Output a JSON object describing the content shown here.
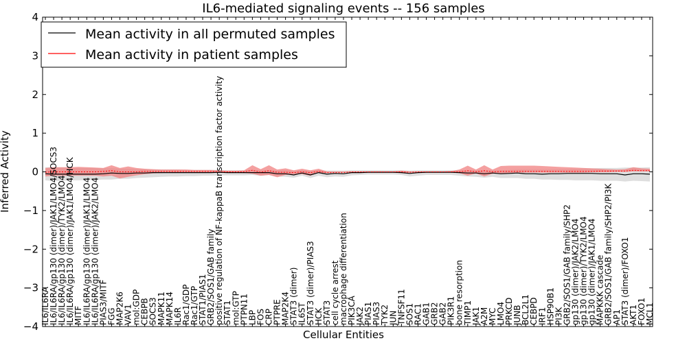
{
  "chart_data": {
    "type": "line",
    "title": "IL6-mediated signaling events -- 156 samples",
    "xlabel": "Cellular Entities",
    "ylabel": "Inferred Activity",
    "ylim": [
      -4,
      4
    ],
    "yticks": [
      {
        "value": 4,
        "label": "4"
      },
      {
        "value": 3,
        "label": "3"
      },
      {
        "value": 2,
        "label": "2"
      },
      {
        "value": 1,
        "label": "1"
      },
      {
        "value": 0,
        "label": "0"
      },
      {
        "value": -1,
        "label": "−1"
      },
      {
        "value": -2,
        "label": "−2"
      },
      {
        "value": -3,
        "label": "−3"
      },
      {
        "value": -4,
        "label": "−4"
      }
    ],
    "legend_position": "top-left",
    "categories": [
      "IL6/IL6RA",
      "IL6/IL6RA/gp130 (dimer)/JAK1/LMO4/SOCS3",
      "IL6/IL6RA/gp130 (dimer)/TYK2/LMO4",
      "IL6/IL6RA/gp130 (dimer)/JAK1/LMO4/HCK",
      "MITF",
      "IL6/IL6RA/gp130 (dimer)/JAK1/LMO4",
      "IL6/IL6RA/gp130 (dimer)/JAK2/LMO4",
      "PIAS3/MITF",
      "FGG",
      "MAP2K6",
      "VAV1",
      "mol:GDP",
      "CEBPB",
      "SOCS3",
      "MAPK11",
      "MAPK14",
      "IL6R",
      "Rac1/GDP",
      "Rac1/GTP",
      "STAT1/PIAS1",
      "GRB2/SOS1/GAB family",
      "positive regulation of NF-kappaB transcription factor activity",
      "STAT1",
      "mol:GTP",
      "PTPN11",
      "LBP",
      "FOS",
      "CRP",
      "PTPRE",
      "MAP2K4",
      "STAT3 (dimer)",
      "IL6ST",
      "STAT3 (dimer)/PIAS3",
      "HCK",
      "STAT3",
      "cell cycle arrest",
      "macrophage differentiation",
      "PIK3CA",
      "JAK2",
      "PIAS1",
      "PIAS3",
      "TYK2",
      "JUN",
      "TNFSF11",
      "SOS1",
      "RAC1",
      "GAB1",
      "GRB2",
      "GAB2",
      "PIK3R1",
      "bone resorption",
      "TIMP1",
      "JAK1",
      "A2M",
      "MYC",
      "LMO4",
      "PRKCD",
      "JUNB",
      "BCL2L1",
      "CEBPD",
      "IRF1",
      "HSP90B1",
      "PI3K",
      "GRB2/SOS1/GAB family/SHP2",
      "gp130 (dimer)/JAK2/LMO4",
      "gp130 (dimer)/TYK2/LMO4",
      "gp130 (dimer)/JAK1/LMO4",
      "MAPKKK cascade",
      "GRB2/SOS1/GAB family/SHP2/PI3K",
      "AP1",
      "STAT3 (dimer)/FOXO1",
      "AKT1",
      "FOXO1",
      "MCL1"
    ],
    "series": [
      {
        "name": "Mean activity in all permuted samples",
        "color": "#000000",
        "mean": [
          -0.05,
          -0.06,
          -0.06,
          -0.06,
          -0.06,
          -0.06,
          -0.06,
          -0.05,
          -0.03,
          -0.04,
          -0.04,
          -0.03,
          -0.03,
          -0.02,
          -0.02,
          -0.02,
          -0.02,
          -0.02,
          -0.02,
          -0.02,
          -0.02,
          -0.01,
          -0.02,
          -0.02,
          -0.02,
          -0.02,
          -0.02,
          -0.02,
          -0.05,
          -0.05,
          -0.08,
          -0.03,
          -0.08,
          -0.02,
          -0.06,
          -0.04,
          -0.05,
          -0.02,
          -0.02,
          -0.01,
          -0.01,
          -0.01,
          -0.01,
          -0.02,
          -0.04,
          -0.02,
          -0.01,
          -0.01,
          -0.01,
          -0.01,
          -0.02,
          -0.03,
          -0.03,
          -0.05,
          -0.03,
          -0.05,
          -0.04,
          -0.03,
          -0.05,
          -0.05,
          -0.06,
          -0.05,
          -0.05,
          -0.04,
          -0.04,
          -0.04,
          -0.04,
          -0.05,
          -0.05,
          -0.05,
          -0.08,
          -0.05,
          -0.05,
          -0.06
        ],
        "band_low": [
          -0.22,
          -0.24,
          -0.23,
          -0.22,
          -0.22,
          -0.21,
          -0.21,
          -0.2,
          -0.2,
          -0.18,
          -0.18,
          -0.16,
          -0.15,
          -0.14,
          -0.13,
          -0.12,
          -0.12,
          -0.11,
          -0.11,
          -0.1,
          -0.1,
          -0.09,
          -0.09,
          -0.09,
          -0.09,
          -0.08,
          -0.1,
          -0.08,
          -0.12,
          -0.13,
          -0.15,
          -0.1,
          -0.16,
          -0.1,
          -0.14,
          -0.12,
          -0.13,
          -0.09,
          -0.08,
          -0.07,
          -0.07,
          -0.07,
          -0.07,
          -0.08,
          -0.12,
          -0.1,
          -0.08,
          -0.08,
          -0.08,
          -0.08,
          -0.1,
          -0.12,
          -0.13,
          -0.15,
          -0.13,
          -0.16,
          -0.16,
          -0.16,
          -0.18,
          -0.18,
          -0.2,
          -0.2,
          -0.21,
          -0.21,
          -0.22,
          -0.22,
          -0.22,
          -0.23,
          -0.23,
          -0.23,
          -0.25,
          -0.23,
          -0.24,
          -0.25
        ],
        "band_high": [
          0.12,
          0.12,
          0.11,
          0.1,
          0.1,
          0.1,
          0.1,
          0.09,
          0.1,
          0.08,
          0.08,
          0.07,
          0.07,
          0.06,
          0.06,
          0.06,
          0.06,
          0.05,
          0.05,
          0.05,
          0.05,
          0.05,
          0.04,
          0.04,
          0.04,
          0.04,
          0.05,
          0.04,
          0.04,
          0.04,
          0.03,
          0.04,
          0.02,
          0.05,
          0.03,
          0.03,
          0.03,
          0.04,
          0.04,
          0.04,
          0.04,
          0.04,
          0.04,
          0.04,
          0.03,
          0.04,
          0.04,
          0.04,
          0.04,
          0.04,
          0.04,
          0.03,
          0.04,
          0.03,
          0.04,
          0.04,
          0.05,
          0.06,
          0.06,
          0.06,
          0.06,
          0.06,
          0.07,
          0.07,
          0.08,
          0.09,
          0.09,
          0.1,
          0.1,
          0.1,
          0.11,
          0.11,
          0.11,
          0.12
        ]
      },
      {
        "name": "Mean activity in patient samples",
        "color": "#ff0000",
        "mean": [
          -0.01,
          0.0,
          0.0,
          0.0,
          0.0,
          0.0,
          0.0,
          0.01,
          0.03,
          0.0,
          0.0,
          0.0,
          0.01,
          0.01,
          0.01,
          0.01,
          0.01,
          0.01,
          0.01,
          0.01,
          0.01,
          0.0,
          0.0,
          0.0,
          0.0,
          0.04,
          -0.01,
          0.03,
          -0.01,
          -0.01,
          -0.02,
          0.0,
          -0.02,
          0.01,
          -0.02,
          -0.02,
          -0.02,
          0.0,
          0.0,
          0.0,
          0.0,
          0.0,
          0.0,
          0.0,
          -0.01,
          0.0,
          0.0,
          0.0,
          0.0,
          0.0,
          0.0,
          0.03,
          0.0,
          0.03,
          0.0,
          0.01,
          0.01,
          0.01,
          0.01,
          0.01,
          0.01,
          0.01,
          0.01,
          0.01,
          0.01,
          0.01,
          0.01,
          0.02,
          0.02,
          0.02,
          0.02,
          0.04,
          0.03,
          0.03
        ],
        "band_low": [
          -0.12,
          -0.1,
          -0.1,
          -0.1,
          -0.1,
          -0.1,
          -0.1,
          -0.12,
          -0.1,
          -0.17,
          -0.13,
          -0.09,
          -0.06,
          -0.04,
          -0.03,
          -0.02,
          -0.02,
          -0.02,
          -0.02,
          -0.02,
          -0.01,
          -0.01,
          -0.01,
          -0.02,
          -0.03,
          -0.05,
          -0.1,
          -0.08,
          -0.14,
          -0.08,
          -0.06,
          -0.06,
          -0.1,
          -0.02,
          -0.03,
          -0.01,
          -0.01,
          -0.01,
          -0.01,
          -0.01,
          -0.01,
          -0.01,
          -0.01,
          -0.02,
          -0.02,
          -0.01,
          -0.01,
          -0.01,
          -0.01,
          -0.01,
          -0.03,
          -0.1,
          -0.04,
          -0.12,
          -0.05,
          -0.04,
          -0.03,
          -0.02,
          -0.02,
          -0.02,
          -0.02,
          -0.02,
          -0.02,
          -0.02,
          -0.02,
          -0.02,
          -0.01,
          -0.01,
          -0.01,
          0.0,
          0.0,
          0.01,
          0.01,
          0.01
        ],
        "band_high": [
          0.1,
          0.12,
          0.12,
          0.12,
          0.13,
          0.12,
          0.11,
          0.1,
          0.17,
          0.1,
          0.14,
          0.1,
          0.08,
          0.07,
          0.06,
          0.06,
          0.06,
          0.06,
          0.05,
          0.05,
          0.05,
          0.04,
          0.03,
          0.03,
          0.04,
          0.17,
          0.07,
          0.17,
          0.06,
          0.09,
          0.04,
          0.08,
          0.04,
          0.08,
          0.01,
          0.01,
          0.01,
          0.01,
          0.01,
          0.01,
          0.01,
          0.01,
          0.01,
          0.03,
          0.01,
          0.01,
          0.01,
          0.01,
          0.01,
          0.02,
          0.06,
          0.16,
          0.06,
          0.17,
          0.06,
          0.15,
          0.16,
          0.16,
          0.16,
          0.16,
          0.15,
          0.14,
          0.13,
          0.12,
          0.11,
          0.1,
          0.09,
          0.08,
          0.07,
          0.06,
          0.07,
          0.12,
          0.09,
          0.08
        ]
      }
    ],
    "band_colors": {
      "permuted": "#c8c8c8",
      "patient": "#f08080"
    }
  }
}
